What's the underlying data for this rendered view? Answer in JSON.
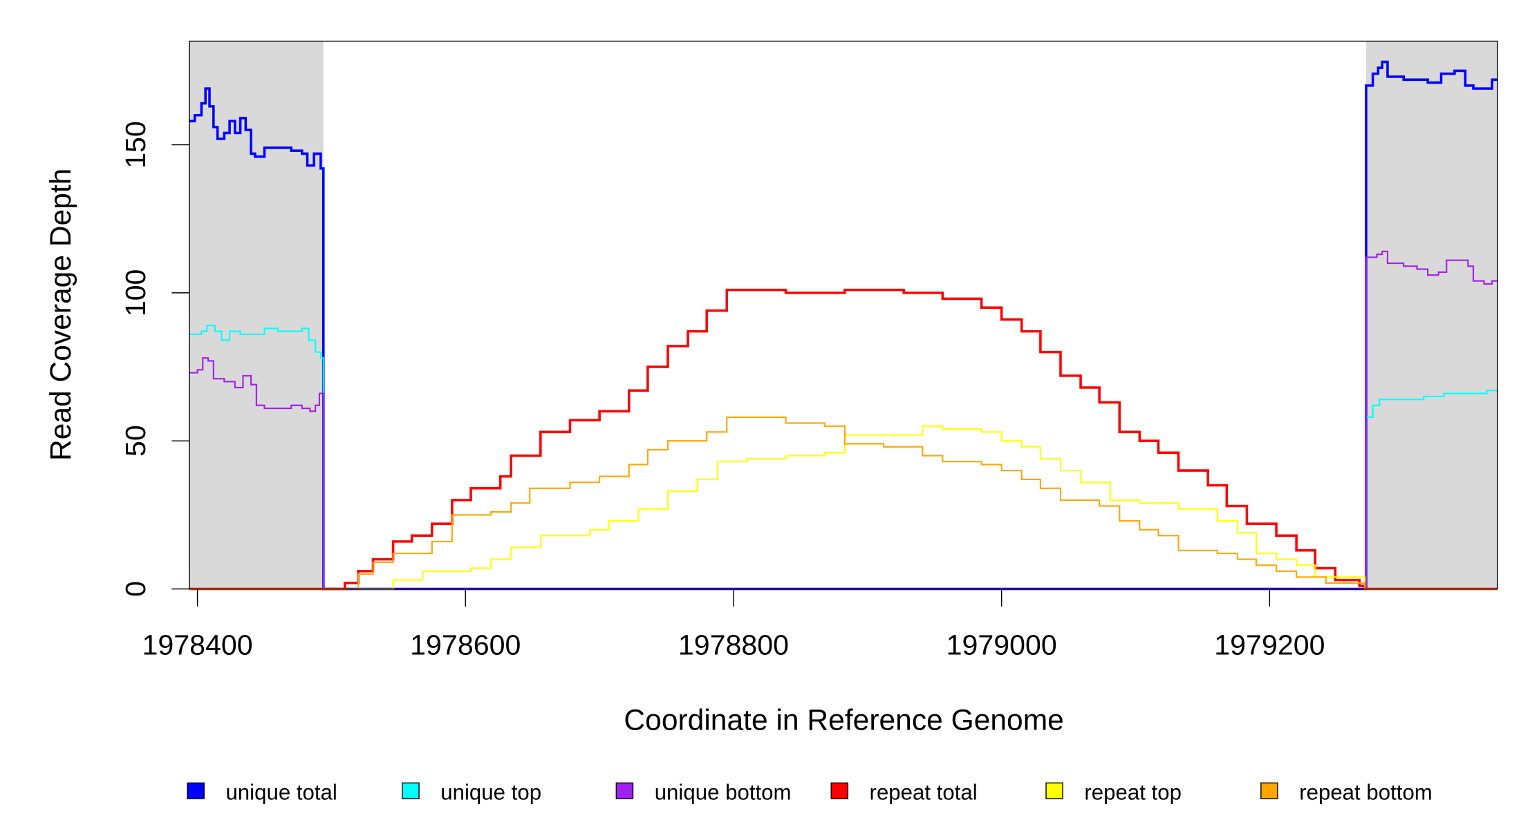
{
  "chart_data": {
    "type": "line",
    "title": "",
    "xlabel": "Coordinate in Reference Genome",
    "ylabel": "Read Coverage Depth",
    "xlim": [
      1978394,
      1979370
    ],
    "ylim": [
      0,
      185
    ],
    "x_ticks": [
      1978400,
      1978600,
      1978800,
      1979000,
      1979200
    ],
    "x_tick_labels": [
      "1978400",
      "1978600",
      "1978800",
      "1979000",
      "1979200"
    ],
    "y_ticks": [
      0,
      50,
      100,
      150
    ],
    "y_tick_labels": [
      "0",
      "50",
      "100",
      "150"
    ],
    "grid": false,
    "legend_position": "bottom",
    "shaded_regions": [
      [
        1978394,
        1978494
      ],
      [
        1979272,
        1979370
      ]
    ],
    "shade_color": "#d9d9d9",
    "series": [
      {
        "name": "unique total",
        "color": "#0000ff",
        "width": 2.5,
        "points": [
          [
            1978394,
            158
          ],
          [
            1978398,
            160
          ],
          [
            1978403,
            164
          ],
          [
            1978406,
            169
          ],
          [
            1978409,
            163
          ],
          [
            1978412,
            156
          ],
          [
            1978415,
            152
          ],
          [
            1978420,
            154
          ],
          [
            1978424,
            158
          ],
          [
            1978428,
            154
          ],
          [
            1978432,
            159
          ],
          [
            1978436,
            155
          ],
          [
            1978440,
            147
          ],
          [
            1978443,
            146
          ],
          [
            1978450,
            149
          ],
          [
            1978460,
            149
          ],
          [
            1978470,
            148
          ],
          [
            1978478,
            147
          ],
          [
            1978482,
            143
          ],
          [
            1978487,
            147
          ],
          [
            1978492,
            142
          ],
          [
            1978494,
            0
          ],
          [
            1979272,
            0
          ],
          [
            1979272,
            170
          ],
          [
            1979277,
            174
          ],
          [
            1979281,
            176
          ],
          [
            1979284,
            178
          ],
          [
            1979288,
            173
          ],
          [
            1979300,
            172
          ],
          [
            1979310,
            172
          ],
          [
            1979318,
            171
          ],
          [
            1979328,
            174
          ],
          [
            1979338,
            175
          ],
          [
            1979346,
            170
          ],
          [
            1979352,
            169
          ],
          [
            1979362,
            169
          ],
          [
            1979366,
            172
          ],
          [
            1979370,
            172
          ]
        ]
      },
      {
        "name": "unique top",
        "color": "#00ffff",
        "width": 1.5,
        "points": [
          [
            1978394,
            86
          ],
          [
            1978403,
            87
          ],
          [
            1978407,
            89
          ],
          [
            1978413,
            87
          ],
          [
            1978418,
            84
          ],
          [
            1978424,
            87
          ],
          [
            1978432,
            86
          ],
          [
            1978440,
            86
          ],
          [
            1978450,
            88
          ],
          [
            1978460,
            87
          ],
          [
            1978470,
            87
          ],
          [
            1978478,
            88
          ],
          [
            1978483,
            84
          ],
          [
            1978488,
            80
          ],
          [
            1978492,
            78
          ],
          [
            1978494,
            0
          ],
          [
            1979272,
            0
          ],
          [
            1979272,
            58
          ],
          [
            1979277,
            62
          ],
          [
            1979282,
            64
          ],
          [
            1979300,
            64
          ],
          [
            1979315,
            65
          ],
          [
            1979330,
            66
          ],
          [
            1979350,
            66
          ],
          [
            1979362,
            67
          ],
          [
            1979370,
            67
          ]
        ]
      },
      {
        "name": "unique bottom",
        "color": "#a020f0",
        "width": 1.5,
        "points": [
          [
            1978394,
            73
          ],
          [
            1978400,
            74
          ],
          [
            1978404,
            78
          ],
          [
            1978408,
            77
          ],
          [
            1978412,
            71
          ],
          [
            1978420,
            70
          ],
          [
            1978428,
            68
          ],
          [
            1978434,
            72
          ],
          [
            1978440,
            69
          ],
          [
            1978444,
            62
          ],
          [
            1978450,
            61
          ],
          [
            1978465,
            61
          ],
          [
            1978470,
            62
          ],
          [
            1978478,
            61
          ],
          [
            1978484,
            60
          ],
          [
            1978488,
            62
          ],
          [
            1978491,
            66
          ],
          [
            1978494,
            0
          ],
          [
            1979272,
            0
          ],
          [
            1979272,
            112
          ],
          [
            1979280,
            113
          ],
          [
            1979284,
            114
          ],
          [
            1979288,
            110
          ],
          [
            1979300,
            109
          ],
          [
            1979310,
            108
          ],
          [
            1979318,
            106
          ],
          [
            1979326,
            107
          ],
          [
            1979332,
            111
          ],
          [
            1979340,
            111
          ],
          [
            1979348,
            109
          ],
          [
            1979352,
            104
          ],
          [
            1979360,
            103
          ],
          [
            1979366,
            104
          ],
          [
            1979370,
            104
          ]
        ]
      },
      {
        "name": "repeat total",
        "color": "#ff0000",
        "width": 2.5,
        "points": [
          [
            1978394,
            0
          ],
          [
            1978502,
            0
          ],
          [
            1978510,
            2
          ],
          [
            1978520,
            6
          ],
          [
            1978531,
            10
          ],
          [
            1978546,
            16
          ],
          [
            1978560,
            18
          ],
          [
            1978575,
            22
          ],
          [
            1978590,
            30
          ],
          [
            1978604,
            34
          ],
          [
            1978626,
            38
          ],
          [
            1978634,
            45
          ],
          [
            1978656,
            53
          ],
          [
            1978678,
            57
          ],
          [
            1978700,
            60
          ],
          [
            1978722,
            67
          ],
          [
            1978736,
            75
          ],
          [
            1978751,
            82
          ],
          [
            1978766,
            87
          ],
          [
            1978780,
            94
          ],
          [
            1978795,
            101
          ],
          [
            1978839,
            100
          ],
          [
            1978883,
            101
          ],
          [
            1978927,
            100
          ],
          [
            1978956,
            98
          ],
          [
            1978985,
            95
          ],
          [
            1979000,
            91
          ],
          [
            1979015,
            87
          ],
          [
            1979029,
            80
          ],
          [
            1979044,
            72
          ],
          [
            1979059,
            68
          ],
          [
            1979073,
            63
          ],
          [
            1979088,
            53
          ],
          [
            1979103,
            50
          ],
          [
            1979117,
            46
          ],
          [
            1979132,
            40
          ],
          [
            1979154,
            35
          ],
          [
            1979168,
            28
          ],
          [
            1979183,
            22
          ],
          [
            1979205,
            18
          ],
          [
            1979220,
            13
          ],
          [
            1979234,
            7
          ],
          [
            1979249,
            3
          ],
          [
            1979267,
            1
          ],
          [
            1979271,
            0
          ],
          [
            1979370,
            0
          ]
        ]
      },
      {
        "name": "repeat top",
        "color": "#ffff00",
        "width": 1.5,
        "points": [
          [
            1978394,
            0
          ],
          [
            1978509,
            0
          ],
          [
            1978546,
            3
          ],
          [
            1978568,
            6
          ],
          [
            1978604,
            7
          ],
          [
            1978619,
            10
          ],
          [
            1978634,
            14
          ],
          [
            1978656,
            18
          ],
          [
            1978693,
            20
          ],
          [
            1978707,
            23
          ],
          [
            1978729,
            27
          ],
          [
            1978751,
            33
          ],
          [
            1978773,
            37
          ],
          [
            1978788,
            43
          ],
          [
            1978810,
            44
          ],
          [
            1978839,
            45
          ],
          [
            1978868,
            46
          ],
          [
            1978883,
            52
          ],
          [
            1978912,
            52
          ],
          [
            1978941,
            55
          ],
          [
            1978956,
            54
          ],
          [
            1978985,
            53
          ],
          [
            1979000,
            50
          ],
          [
            1979015,
            48
          ],
          [
            1979029,
            44
          ],
          [
            1979044,
            40
          ],
          [
            1979059,
            36
          ],
          [
            1979081,
            30
          ],
          [
            1979103,
            29
          ],
          [
            1979132,
            27
          ],
          [
            1979161,
            23
          ],
          [
            1979176,
            19
          ],
          [
            1979190,
            12
          ],
          [
            1979205,
            10
          ],
          [
            1979220,
            8
          ],
          [
            1979234,
            4
          ],
          [
            1979271,
            0
          ],
          [
            1979370,
            0
          ]
        ]
      },
      {
        "name": "repeat bottom",
        "color": "#ffa500",
        "width": 1.5,
        "points": [
          [
            1978394,
            0
          ],
          [
            1978504,
            0
          ],
          [
            1978520,
            5
          ],
          [
            1978531,
            9
          ],
          [
            1978546,
            12
          ],
          [
            1978575,
            16
          ],
          [
            1978590,
            25
          ],
          [
            1978619,
            26
          ],
          [
            1978634,
            29
          ],
          [
            1978648,
            34
          ],
          [
            1978678,
            36
          ],
          [
            1978700,
            38
          ],
          [
            1978722,
            42
          ],
          [
            1978736,
            47
          ],
          [
            1978751,
            50
          ],
          [
            1978780,
            53
          ],
          [
            1978795,
            58
          ],
          [
            1978839,
            56
          ],
          [
            1978868,
            55
          ],
          [
            1978883,
            49
          ],
          [
            1978912,
            48
          ],
          [
            1978941,
            45
          ],
          [
            1978956,
            43
          ],
          [
            1978985,
            42
          ],
          [
            1979000,
            40
          ],
          [
            1979015,
            37
          ],
          [
            1979029,
            34
          ],
          [
            1979044,
            30
          ],
          [
            1979059,
            30
          ],
          [
            1979073,
            28
          ],
          [
            1979088,
            23
          ],
          [
            1979103,
            20
          ],
          [
            1979117,
            18
          ],
          [
            1979132,
            13
          ],
          [
            1979161,
            12
          ],
          [
            1979176,
            10
          ],
          [
            1979190,
            8
          ],
          [
            1979205,
            6
          ],
          [
            1979220,
            4
          ],
          [
            1979242,
            2
          ],
          [
            1979271,
            0
          ],
          [
            1979370,
            0
          ]
        ]
      }
    ]
  }
}
